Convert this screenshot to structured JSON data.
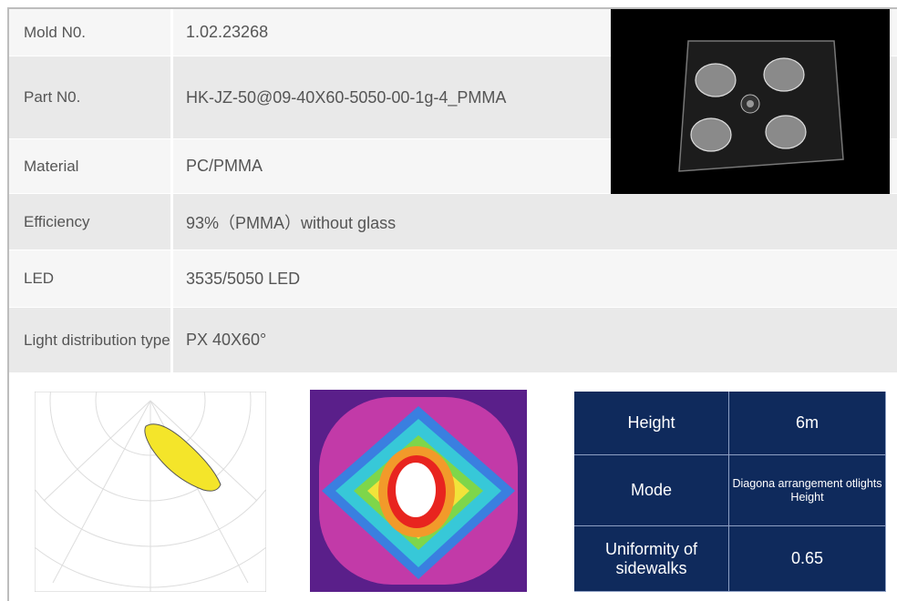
{
  "specs": [
    {
      "label": "Mold N0.",
      "value": "1.02.23268"
    },
    {
      "label": "Part N0.",
      "value": "HK-JZ-50@09-40X60-5050-00-1g-4_PMMA"
    },
    {
      "label": "Material",
      "value": "PC/PMMA"
    },
    {
      "label": "Efficiency",
      "value": "93%（PMMA）without glass"
    },
    {
      "label": "LED",
      "value": "3535/5050 LED"
    },
    {
      "label": "Light distribution type",
      "value": "PX  40X60°"
    }
  ],
  "mode_table": [
    {
      "label": "Height",
      "value": "6m"
    },
    {
      "label": "Mode",
      "value": "Diagona arrangement otlights Height"
    },
    {
      "label": "Uniformity of sidewalks",
      "value": "0.65"
    }
  ]
}
